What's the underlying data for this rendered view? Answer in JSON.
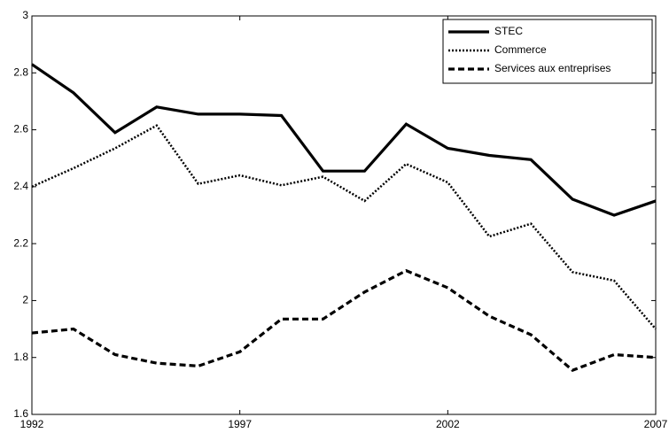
{
  "chart_data": {
    "type": "line",
    "x": [
      1992,
      1993,
      1994,
      1995,
      1996,
      1997,
      1998,
      1999,
      2000,
      2001,
      2002,
      2003,
      2004,
      2005,
      2006,
      2007
    ],
    "series": [
      {
        "name": "STEC",
        "color": "#000000",
        "dash": "solid",
        "values": [
          2.83,
          2.73,
          2.59,
          2.68,
          2.655,
          2.655,
          2.65,
          2.455,
          2.455,
          2.62,
          2.535,
          2.51,
          2.495,
          2.356,
          2.3,
          2.35
        ]
      },
      {
        "name": "Commerce",
        "color": "#000000",
        "dash": "dotted",
        "values": [
          2.4,
          2.465,
          2.535,
          2.615,
          2.41,
          2.44,
          2.405,
          2.435,
          2.35,
          2.48,
          2.415,
          2.225,
          2.27,
          2.1,
          2.07,
          1.9
        ]
      },
      {
        "name": "Services aux entreprises",
        "color": "#000000",
        "dash": "dashed",
        "values": [
          1.886,
          1.9,
          1.81,
          1.78,
          1.77,
          1.82,
          1.935,
          1.935,
          2.03,
          2.105,
          2.045,
          1.945,
          1.88,
          1.755,
          1.81,
          1.8
        ]
      }
    ],
    "xlim": [
      1992,
      2007
    ],
    "xticks": [
      1992,
      1997,
      2002,
      2007
    ],
    "ylim": [
      1.6,
      3
    ],
    "yticks": [
      1.6,
      1.8,
      2,
      2.2,
      2.4,
      2.6,
      2.8,
      3
    ],
    "grid": false,
    "legend": "top-right"
  }
}
